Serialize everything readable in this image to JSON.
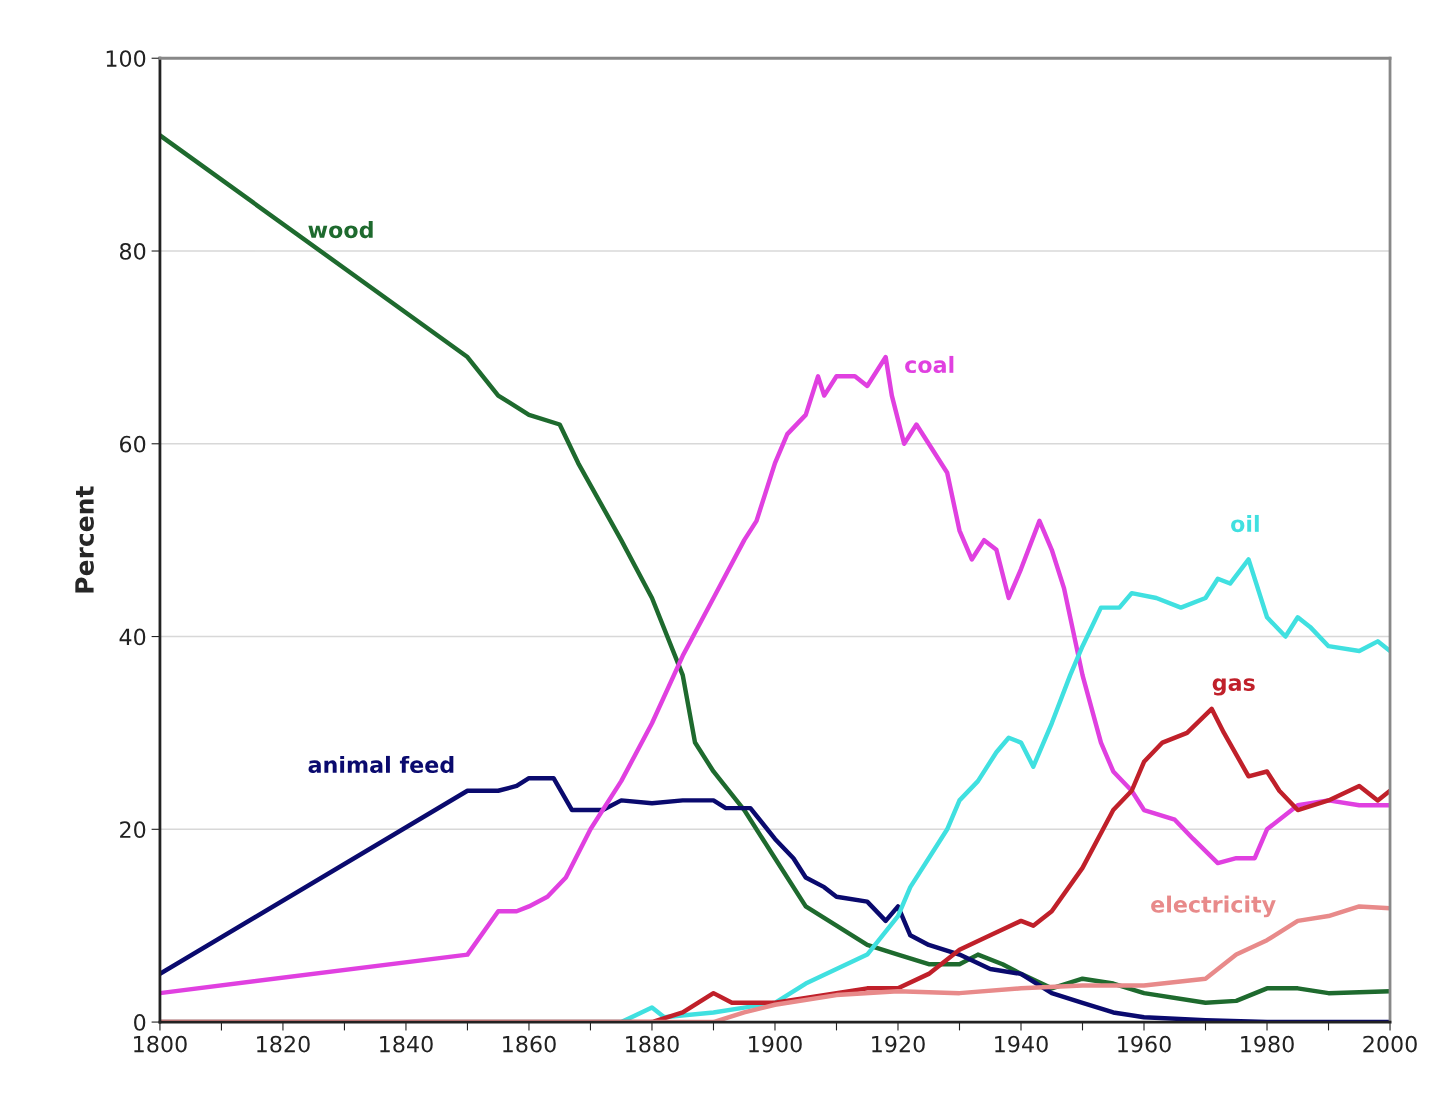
{
  "chart_data": {
    "type": "line",
    "ylabel": "Percent",
    "xlim": [
      1800,
      2000
    ],
    "ylim": [
      0,
      100
    ],
    "xticks": [
      1800,
      {
        "value": 1810,
        "label": null
      },
      1820,
      {
        "value": 1830,
        "label": null
      },
      1840,
      {
        "value": 1850,
        "label": null
      },
      1860,
      {
        "value": 1870,
        "label": null
      },
      1880,
      {
        "value": 1890,
        "label": null
      },
      1900,
      {
        "value": 1910,
        "label": null
      },
      1920,
      {
        "value": 1930,
        "label": null
      },
      1940,
      {
        "value": 1950,
        "label": null
      },
      1960,
      {
        "value": 1970,
        "label": null
      },
      1980,
      {
        "value": 1990,
        "label": null
      },
      2000
    ],
    "yticks": [
      0,
      20,
      40,
      60,
      80,
      100
    ],
    "grid": "y",
    "legend": false,
    "marker": "none",
    "line_style": "solid",
    "series": [
      {
        "name": "wood",
        "color": "#1e6a2e",
        "x": [
          1800,
          1850,
          1855,
          1860,
          1865,
          1868,
          1875,
          1880,
          1885,
          1887,
          1890,
          1895,
          1900,
          1905,
          1910,
          1915,
          1920,
          1925,
          1930,
          1933,
          1937,
          1940,
          1945,
          1950,
          1955,
          1960,
          1970,
          1975,
          1980,
          1985,
          1990,
          2000
        ],
        "values": [
          92,
          69,
          65,
          63,
          62,
          58,
          50,
          44,
          36,
          29,
          26,
          22,
          17,
          12,
          10,
          8,
          7,
          6,
          6,
          7,
          6,
          5,
          3.5,
          4.5,
          4,
          3,
          2,
          2.2,
          3.5,
          3.5,
          3,
          3.2
        ]
      },
      {
        "name": "animal feed",
        "color": "#0a0a6e",
        "x": [
          1800,
          1850,
          1855,
          1858,
          1860,
          1864,
          1867,
          1872,
          1875,
          1880,
          1885,
          1890,
          1892,
          1896,
          1900,
          1903,
          1905,
          1908,
          1910,
          1915,
          1918,
          1920,
          1922,
          1925,
          1930,
          1935,
          1940,
          1945,
          1950,
          1955,
          1960,
          1970,
          1980,
          2000
        ],
        "values": [
          5,
          24,
          24,
          24.5,
          25.3,
          25.3,
          22,
          22,
          23,
          22.7,
          23,
          23,
          22.2,
          22.2,
          19,
          17,
          15,
          14,
          13,
          12.5,
          10.5,
          12,
          9,
          8,
          7,
          5.5,
          5,
          3,
          2,
          1,
          0.5,
          0.2,
          0,
          0
        ]
      },
      {
        "name": "coal",
        "color": "#e040e0",
        "x": [
          1800,
          1850,
          1855,
          1858,
          1860,
          1863,
          1866,
          1870,
          1875,
          1880,
          1885,
          1890,
          1895,
          1897,
          1900,
          1902,
          1905,
          1907,
          1908,
          1910,
          1913,
          1915,
          1918,
          1919,
          1921,
          1923,
          1925,
          1928,
          1930,
          1932,
          1934,
          1936,
          1938,
          1940,
          1943,
          1945,
          1947,
          1950,
          1953,
          1955,
          1958,
          1960,
          1965,
          1968,
          1972,
          1975,
          1978,
          1980,
          1985,
          1990,
          1995,
          2000
        ],
        "values": [
          3,
          7,
          11.5,
          11.5,
          12,
          13,
          15,
          20,
          25,
          31,
          38,
          44,
          50,
          52,
          58,
          61,
          63,
          67,
          65,
          67,
          67,
          66,
          69,
          65,
          60,
          62,
          60,
          57,
          51,
          48,
          50,
          49,
          44,
          47,
          52,
          49,
          45,
          36,
          29,
          26,
          24,
          22,
          21,
          19,
          16.5,
          17,
          17,
          20,
          22.5,
          23,
          22.5,
          22.5
        ]
      },
      {
        "name": "oil",
        "color": "#40e0e0",
        "x": [
          1800,
          1875,
          1880,
          1882,
          1890,
          1895,
          1900,
          1905,
          1910,
          1915,
          1920,
          1922,
          1925,
          1928,
          1930,
          1933,
          1936,
          1938,
          1940,
          1942,
          1945,
          1948,
          1950,
          1953,
          1956,
          1958,
          1962,
          1966,
          1970,
          1972,
          1974,
          1977,
          1980,
          1983,
          1985,
          1987,
          1990,
          1995,
          1998,
          2000
        ],
        "values": [
          0,
          0,
          1.5,
          0.5,
          1,
          1.5,
          2,
          4,
          5.5,
          7,
          11,
          14,
          17,
          20,
          23,
          25,
          28,
          29.5,
          29,
          26.5,
          31,
          36,
          39,
          43,
          43,
          44.5,
          44,
          43,
          44,
          46,
          45.5,
          48,
          42,
          40,
          42,
          41,
          39,
          38.5,
          39.5,
          38.5
        ]
      },
      {
        "name": "gas",
        "color": "#c0202a",
        "x": [
          1800,
          1880,
          1885,
          1890,
          1893,
          1900,
          1905,
          1910,
          1915,
          1920,
          1925,
          1930,
          1935,
          1940,
          1942,
          1945,
          1950,
          1955,
          1958,
          1960,
          1963,
          1967,
          1971,
          1973,
          1977,
          1980,
          1982,
          1985,
          1990,
          1995,
          1998,
          2000
        ],
        "values": [
          0,
          0,
          1,
          3,
          2,
          2,
          2.5,
          3,
          3.5,
          3.5,
          5,
          7.5,
          9,
          10.5,
          10,
          11.5,
          16,
          22,
          24,
          27,
          29,
          30,
          32.5,
          30,
          25.5,
          26,
          24,
          22,
          23,
          24.5,
          23,
          24
        ]
      },
      {
        "name": "electricity",
        "color": "#e88a8a",
        "x": [
          1800,
          1890,
          1895,
          1900,
          1910,
          1920,
          1930,
          1940,
          1950,
          1960,
          1970,
          1975,
          1980,
          1985,
          1990,
          1995,
          2000
        ],
        "values": [
          0,
          0,
          1,
          1.8,
          2.8,
          3.2,
          3,
          3.5,
          3.8,
          3.8,
          4.5,
          7,
          8.5,
          10.5,
          11,
          12,
          11.8
        ]
      }
    ]
  }
}
